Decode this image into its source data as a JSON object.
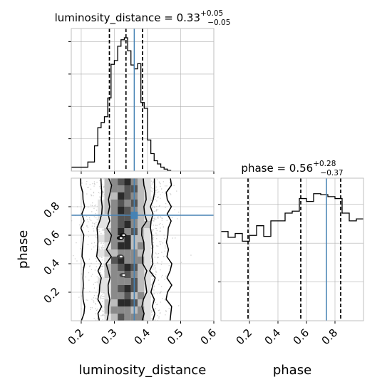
{
  "chart_data": [
    {
      "type": "histogram",
      "panel": "top-left",
      "parameter": "luminosity_distance",
      "title": {
        "base": "luminosity_distance = 0.33",
        "plus": "+0.05",
        "minus": "−0.05"
      },
      "xlim": [
        0.17,
        0.6
      ],
      "truth": 0.36,
      "quantiles": [
        0.285,
        0.335,
        0.385
      ],
      "grid": true,
      "bins": [
        {
          "x0": 0.17,
          "x1": 0.18,
          "density": 0.6
        },
        {
          "x0": 0.18,
          "x1": 0.19,
          "density": 0.6
        },
        {
          "x0": 0.19,
          "x1": 0.2,
          "density": 0.6
        },
        {
          "x0": 0.2,
          "x1": 0.21,
          "density": 0.6
        },
        {
          "x0": 0.21,
          "x1": 0.22,
          "density": 0.6
        },
        {
          "x0": 0.22,
          "x1": 0.23,
          "density": 1.4
        },
        {
          "x0": 0.23,
          "x1": 0.24,
          "density": 1.4
        },
        {
          "x0": 0.24,
          "x1": 0.25,
          "density": 3.9
        },
        {
          "x0": 0.25,
          "x1": 0.26,
          "density": 6.7
        },
        {
          "x0": 0.26,
          "x1": 0.27,
          "density": 7.5
        },
        {
          "x0": 0.27,
          "x1": 0.28,
          "density": 8.4
        },
        {
          "x0": 0.28,
          "x1": 0.29,
          "density": 11.3
        },
        {
          "x0": 0.29,
          "x1": 0.3,
          "density": 16.5
        },
        {
          "x0": 0.3,
          "x1": 0.31,
          "density": 17.1
        },
        {
          "x0": 0.31,
          "x1": 0.32,
          "density": 19.3
        },
        {
          "x0": 0.32,
          "x1": 0.33,
          "density": 20.3
        },
        {
          "x0": 0.33,
          "x1": 0.34,
          "density": 20.6
        },
        {
          "x0": 0.34,
          "x1": 0.35,
          "density": 18.6
        },
        {
          "x0": 0.35,
          "x1": 0.36,
          "density": 16.4
        },
        {
          "x0": 0.36,
          "x1": 0.37,
          "density": 15.8
        },
        {
          "x0": 0.37,
          "x1": 0.38,
          "density": 16.6
        },
        {
          "x0": 0.38,
          "x1": 0.39,
          "density": 10.6
        },
        {
          "x0": 0.39,
          "x1": 0.4,
          "density": 9.7
        },
        {
          "x0": 0.4,
          "x1": 0.41,
          "density": 4.8
        },
        {
          "x0": 0.41,
          "x1": 0.42,
          "density": 2.7
        },
        {
          "x0": 0.42,
          "x1": 0.43,
          "density": 1.6
        },
        {
          "x0": 0.43,
          "x1": 0.44,
          "density": 1.1
        },
        {
          "x0": 0.44,
          "x1": 0.45,
          "density": 0.6
        },
        {
          "x0": 0.45,
          "x1": 0.46,
          "density": 0.3
        },
        {
          "x0": 0.46,
          "x1": 0.47,
          "density": 0.1
        }
      ]
    },
    {
      "type": "histogram",
      "panel": "bottom-right",
      "parameter": "phase",
      "title": {
        "base": "phase = 0.56",
        "plus": "+0.28",
        "minus": "−0.37"
      },
      "xlabel": "phase",
      "xlim": [
        0.0,
        1.0
      ],
      "truth": 0.74,
      "quantiles": [
        0.19,
        0.56,
        0.84
      ],
      "grid": true,
      "xticks": [
        "0.2",
        "0.4",
        "0.6",
        "0.8"
      ],
      "bins": [
        {
          "x0": 0.0,
          "x1": 0.05,
          "density": 0.92
        },
        {
          "x0": 0.05,
          "x1": 0.1,
          "density": 0.86
        },
        {
          "x0": 0.1,
          "x1": 0.15,
          "density": 0.9
        },
        {
          "x0": 0.15,
          "x1": 0.2,
          "density": 0.82
        },
        {
          "x0": 0.2,
          "x1": 0.25,
          "density": 0.88
        },
        {
          "x0": 0.25,
          "x1": 0.3,
          "density": 0.98
        },
        {
          "x0": 0.3,
          "x1": 0.35,
          "density": 0.87
        },
        {
          "x0": 0.35,
          "x1": 0.4,
          "density": 1.03
        },
        {
          "x0": 0.4,
          "x1": 0.45,
          "density": 1.03
        },
        {
          "x0": 0.45,
          "x1": 0.5,
          "density": 1.11
        },
        {
          "x0": 0.5,
          "x1": 0.55,
          "density": 1.13
        },
        {
          "x0": 0.55,
          "x1": 0.6,
          "density": 1.26
        },
        {
          "x0": 0.6,
          "x1": 0.65,
          "density": 1.23
        },
        {
          "x0": 0.65,
          "x1": 0.7,
          "density": 1.31
        },
        {
          "x0": 0.7,
          "x1": 0.75,
          "density": 1.3
        },
        {
          "x0": 0.75,
          "x1": 0.8,
          "density": 1.28
        },
        {
          "x0": 0.8,
          "x1": 0.85,
          "density": 1.26
        },
        {
          "x0": 0.85,
          "x1": 0.9,
          "density": 1.11
        },
        {
          "x0": 0.9,
          "x1": 0.95,
          "density": 1.03
        },
        {
          "x0": 0.95,
          "x1": 1.0,
          "density": 1.05
        }
      ]
    },
    {
      "type": "scatter-density",
      "panel": "bottom-left",
      "xlabel": "luminosity_distance",
      "ylabel": "phase",
      "xlim": [
        0.17,
        0.6
      ],
      "ylim": [
        0.0,
        1.0
      ],
      "xticks": [
        "0.2",
        "0.3",
        "0.4",
        "0.5",
        "0.6"
      ],
      "yticks": [
        "0.2",
        "0.4",
        "0.6",
        "0.8"
      ],
      "truth": {
        "x": 0.36,
        "y": 0.74
      },
      "samples": {
        "x_mean": 0.335,
        "x_sd": 0.05,
        "y_range": [
          0.0,
          1.0
        ],
        "n": 3500
      },
      "contours": [
        {
          "level": "outer",
          "x_left": 0.205,
          "x_right": 0.465
        },
        {
          "level": "mid",
          "x_left": 0.255,
          "x_right": 0.415
        },
        {
          "level": "inner",
          "x_left": 0.283,
          "x_right": 0.39
        }
      ],
      "grid": true
    }
  ],
  "colors": {
    "truth": "#4682b4",
    "hist": "#000000",
    "grid": "#b0b0b0",
    "scatter": "#a8a8a8",
    "frame": "#bfbfbf"
  }
}
